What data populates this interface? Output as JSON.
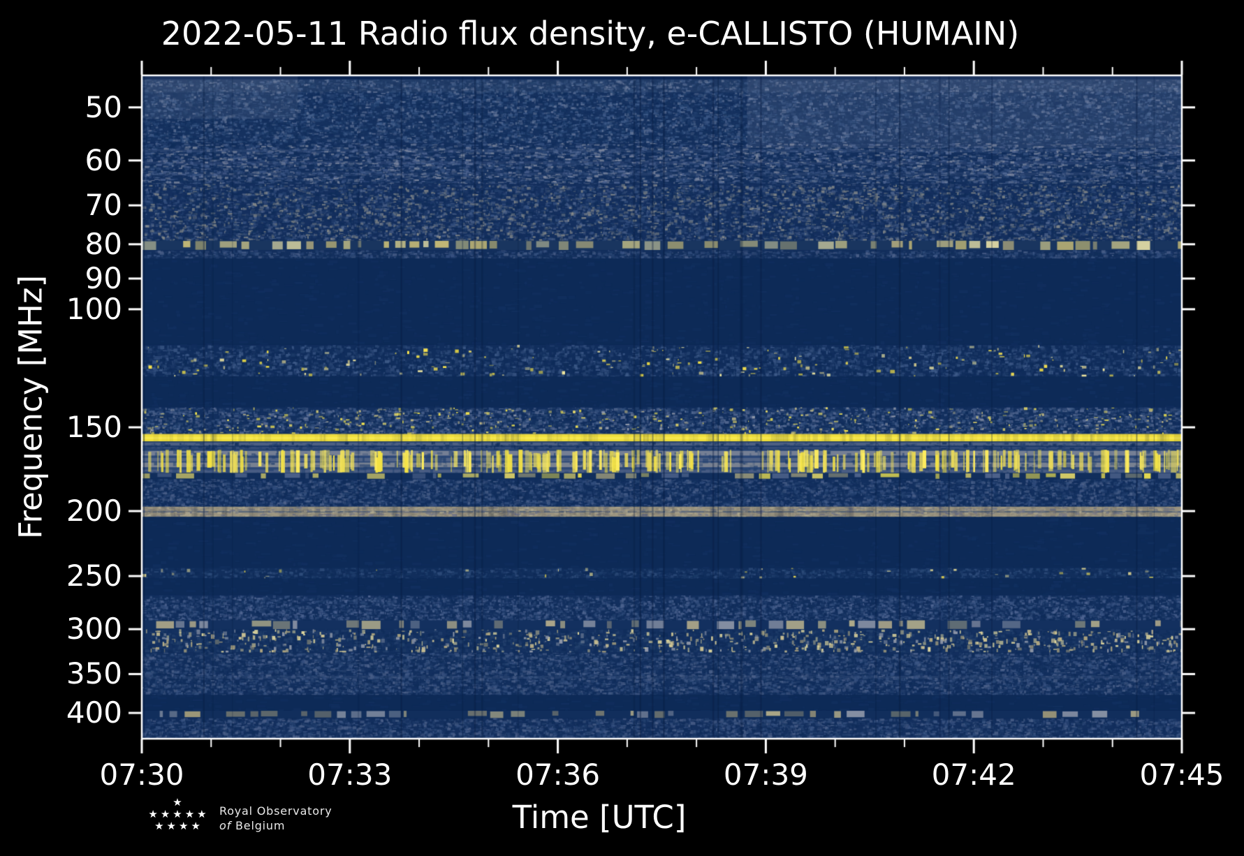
{
  "title": "2022-05-11 Radio flux density, e-CALLISTO (HUMAIN)",
  "chart_data": {
    "type": "heatmap",
    "subtype": "radio-spectrogram",
    "title": "2022-05-11 Radio flux density, e-CALLISTO (HUMAIN)",
    "xlabel": "Time [UTC]",
    "ylabel": "Frequency [MHz]",
    "x_ticks_major": [
      "07:30",
      "07:33",
      "07:36",
      "07:39",
      "07:42",
      "07:45"
    ],
    "x_major_step_min": 3,
    "x_minor_step_min": 1,
    "x_total_minutes": 15,
    "x_range_utc": [
      "07:30",
      "07:45"
    ],
    "y_ticks": [
      50,
      60,
      70,
      80,
      90,
      100,
      150,
      200,
      250,
      300,
      350,
      400
    ],
    "y_scale": "log",
    "y_range_mhz": [
      44.8,
      437
    ],
    "grid": "off",
    "legend": "none",
    "background": "#000000",
    "palette": {
      "quiet_blue": "#0d2a57",
      "noise_blue": "#12305e",
      "light_blue": "#51658d",
      "grey_tan": "#9a937f",
      "pale_yellow": "#d9cf8b",
      "bright_yellow": "#f2e13c",
      "white": "#ffffff"
    },
    "features": [
      {
        "desc": "dark strip at top edge",
        "f0": 44.8,
        "f1": 45.4,
        "base": "#0a2350"
      },
      {
        "desc": "45-56 MHz noisy background",
        "f0": 45.4,
        "f1": 56.5,
        "base": "#15315f",
        "noise": {
          "colors": [
            "#21406e",
            "#2e4d7c",
            "#44608e",
            "#6a7b9d",
            "#16335f",
            "#0f2c5a"
          ],
          "density": 1.2,
          "cw": 4,
          "ch": 2.5
        }
      },
      {
        "desc": "56-65 MHz band with horizontal ripples",
        "f0": 56.5,
        "f1": 65,
        "base": "#132f5d",
        "rows": [
          [
            0.15,
            0.23,
            "#51668f",
            0.32
          ],
          [
            0.45,
            0.53,
            "#51668f",
            0.28
          ],
          [
            0.72,
            0.8,
            "#4c6189",
            0.28
          ]
        ],
        "noise": {
          "colors": [
            "#24416f",
            "#3a5584",
            "#556a96",
            "#8a92a6",
            "#102d59"
          ],
          "density": 1.1,
          "cw": 5,
          "ch": 2
        }
      },
      {
        "desc": "65-79 MHz noisy",
        "f0": 65,
        "f1": 79,
        "base": "#142f5e",
        "noise": {
          "colors": [
            "#24416f",
            "#3a5584",
            "#55698f",
            "#97978f",
            "#102d59",
            "#102d59"
          ],
          "density": 1.15,
          "cw": 4,
          "ch": 2.5
        }
      },
      {
        "desc": "~80 MHz pale emission dashes",
        "f0": 79,
        "f1": 81.6,
        "base": "#19355f",
        "dashes": {
          "colors": [
            "#d9cf8b",
            "#cdc077",
            "#e6dfa6",
            "#b2ab7d"
          ],
          "alphaMin": 0.5
        }
      },
      {
        "desc": "82-84 MHz noisy",
        "f0": 81.6,
        "f1": 84,
        "base": "#132f5d",
        "noise": {
          "colors": [
            "#24416f",
            "#3a5584",
            "#51658d",
            "#102d59"
          ],
          "density": 1.1,
          "cw": 4,
          "ch": 2.5
        }
      },
      {
        "desc": "84-113 MHz quiet band",
        "f0": 84,
        "f1": 113,
        "base": "#0d2a57",
        "noise": {
          "colors": [
            "#123060"
          ],
          "density": 0.15,
          "cw": 8,
          "ch": 3
        }
      },
      {
        "desc": "113-126 MHz airband with bright spots",
        "f0": 113,
        "f1": 126,
        "base": "#102d5c",
        "noise": {
          "colors": [
            "#1d3a68",
            "#2c4977",
            "#44608e",
            "#0e2b58"
          ],
          "density": 1.0,
          "cw": 4,
          "ch": 3
        },
        "dots": {
          "count": 170,
          "colors": [
            "#ffe84f",
            "#f2df45",
            "#efe6a0",
            "#cdc58b"
          ],
          "w": 6,
          "h": 4
        }
      },
      {
        "desc": "126-140 MHz quiet",
        "f0": 126,
        "f1": 140,
        "base": "#0d2a57",
        "noise": {
          "colors": [
            "#123060"
          ],
          "density": 0.2,
          "cw": 8,
          "ch": 3
        }
      },
      {
        "desc": "140-153 MHz noisy with yellow speckles",
        "f0": 140,
        "f1": 153.5,
        "base": "#122f5e",
        "noise": {
          "colors": [
            "#27446f",
            "#3d5987",
            "#64759b",
            "#0f2c59"
          ],
          "density": 1.2,
          "cw": 4,
          "ch": 2.5
        },
        "dots": {
          "count": 430,
          "colors": [
            "#e8da6a",
            "#f5e54e",
            "#bab285",
            "#8f97a8"
          ],
          "w": 5,
          "h": 3
        }
      },
      {
        "desc": "~155 MHz strong continuous RFI line",
        "f0": 153.5,
        "f1": 157.5,
        "base": "#f2e13c",
        "rows": [
          [
            0.0,
            0.18,
            "#d9c94f",
            0.5
          ],
          [
            0.45,
            0.62,
            "#fff171",
            0.6
          ]
        ],
        "mod": true
      },
      {
        "desc": "158-162 MHz gap with grey rows",
        "f0": 157.5,
        "f1": 162,
        "base": "#1a3866",
        "rows": [
          [
            0.1,
            0.5,
            "#76809a",
            0.55
          ],
          [
            0.65,
            0.95,
            "#5a6a90",
            0.4
          ]
        ],
        "noise": {
          "colors": [
            "#24416f",
            "#0f2c59"
          ],
          "density": 0.5,
          "cw": 4,
          "ch": 3
        }
      },
      {
        "desc": "162-175 MHz grey stripes with dense yellow bursts",
        "f0": 162,
        "f1": 175.5,
        "base": "#2c4876",
        "rows": [
          [
            0.05,
            0.25,
            "#8e929f",
            0.75
          ],
          [
            0.35,
            0.5,
            "#747d95",
            0.5
          ],
          [
            0.55,
            0.75,
            "#989a9c",
            0.7
          ],
          [
            0.85,
            1.0,
            "#6b7694",
            0.45
          ]
        ],
        "noise": {
          "colors": [
            "#21406e"
          ],
          "density": 0.25,
          "cw": 5,
          "ch": 4
        },
        "streaks": {
          "count": 250,
          "colors": [
            "#f4e344",
            "#ffee5e",
            "#e8d95a"
          ],
          "wMin": 1.5,
          "wMax": 6.5
        }
      },
      {
        "desc": "~177 MHz speckled line",
        "f0": 175.5,
        "f1": 179,
        "base": "#112e5c",
        "dashes": {
          "colors": [
            "#e3d668",
            "#f2e450",
            "#b0a97f",
            "#51658d"
          ],
          "alphaMin": 0.45
        }
      },
      {
        "desc": "179-197 MHz noisy",
        "f0": 179,
        "f1": 197,
        "base": "#122f5e",
        "noise": {
          "colors": [
            "#24416f",
            "#3a5584",
            "#0f2c59",
            "#51658d"
          ],
          "density": 1.15,
          "cw": 4,
          "ch": 2.5
        }
      },
      {
        "desc": "197-204 MHz tan band",
        "f0": 197,
        "f1": 204,
        "base": "#9a937f",
        "rows": [
          [
            0.42,
            0.58,
            "#26436f",
            0.55
          ]
        ],
        "mod": true,
        "noise": {
          "colors": [
            "#b5ad92",
            "#847f73",
            "#6d7288"
          ],
          "density": 0.8,
          "cw": 5,
          "ch": 2
        }
      },
      {
        "desc": "204-243 MHz quiet",
        "f0": 204,
        "f1": 243,
        "base": "#0d2a57",
        "noise": {
          "colors": [
            "#123060"
          ],
          "density": 0.15,
          "cw": 9,
          "ch": 3
        }
      },
      {
        "desc": "~247 MHz thin noisy band",
        "f0": 243,
        "f1": 252,
        "base": "#112e5c",
        "noise": {
          "colors": [
            "#20406e",
            "#33517f",
            "#0e2b58"
          ],
          "density": 0.9,
          "cw": 4,
          "ch": 2.5
        },
        "dots": {
          "count": 32,
          "colors": [
            "#ffe84f",
            "#d9d08f"
          ],
          "w": 5,
          "h": 4
        }
      },
      {
        "desc": "252-267 MHz quiet",
        "f0": 252,
        "f1": 267,
        "base": "#0d2a57",
        "noise": {
          "colors": [
            "#123060"
          ],
          "density": 0.18,
          "cw": 9,
          "ch": 3
        }
      },
      {
        "desc": "267-291 MHz noisy textured",
        "f0": 267,
        "f1": 291,
        "base": "#122f5e",
        "noise": {
          "colors": [
            "#24416f",
            "#3a5584",
            "#556a96",
            "#0f2c59"
          ],
          "density": 1.2,
          "cw": 3.5,
          "ch": 2.5
        }
      },
      {
        "desc": "~295 MHz tan speckle row",
        "f0": 291,
        "f1": 300,
        "base": "#13305f",
        "dashes": {
          "colors": [
            "#b7ae8c",
            "#cfc493",
            "#8f97a8"
          ],
          "alphaMin": 0.4
        }
      },
      {
        "desc": "300-325 MHz tan dash band",
        "f0": 300,
        "f1": 325,
        "base": "#143160",
        "noise": {
          "colors": [
            "#27446f",
            "#0f2c59"
          ],
          "density": 0.8,
          "cw": 4,
          "ch": 3
        },
        "dots": {
          "count": 720,
          "colors": [
            "#c9bf92",
            "#b0a67f",
            "#e0d79e",
            "#8f97a8"
          ],
          "w": 5,
          "h": 6
        }
      },
      {
        "desc": "325-376 MHz noisy",
        "f0": 325,
        "f1": 376,
        "base": "#122f5e",
        "rows": [
          [
            0.55,
            0.62,
            "#4a5f88",
            0.3
          ]
        ],
        "noise": {
          "colors": [
            "#23406e",
            "#395483",
            "#51658d",
            "#0f2c59"
          ],
          "density": 1.15,
          "cw": 4,
          "ch": 2.5
        }
      },
      {
        "desc": "376-397 MHz quiet",
        "f0": 376,
        "f1": 397,
        "base": "#0d2a57",
        "noise": {
          "colors": [
            "#123060"
          ],
          "density": 0.2,
          "cw": 9,
          "ch": 3
        }
      },
      {
        "desc": "~402 MHz tan speckle line",
        "f0": 397,
        "f1": 407,
        "base": "#112e5c",
        "dashes": {
          "colors": [
            "#c2b88d",
            "#a9a07b",
            "#8f97a8"
          ],
          "alphaMin": 0.4
        }
      },
      {
        "desc": "407-437 MHz bottom noisy band",
        "f0": 407,
        "f1": 437,
        "base": "#132f5e",
        "noise": {
          "colors": [
            "#24416f",
            "#3a5584",
            "#51658d",
            "#0f2c59"
          ],
          "density": 1.25,
          "cw": 4,
          "ch": 2.5
        }
      }
    ],
    "shading": [
      {
        "desc": "lighter patch top-left",
        "x0": 0.0,
        "x1": 0.15,
        "f0": 44.8,
        "f1": 52,
        "color": "#7d8aa6",
        "alpha": 0.15
      },
      {
        "desc": "lighter patch top-right",
        "x0": 0.582,
        "x1": 1.0,
        "f0": 44.8,
        "f1": 57.5,
        "color": "#7d8aa6",
        "alpha": 0.16
      },
      {
        "desc": "bright top rows",
        "x0": 0.0,
        "x1": 1.0,
        "f0": 45.4,
        "f1": 47.5,
        "color": "#8893a9",
        "alpha": 0.1
      }
    ],
    "dropouts": {
      "count": 26,
      "color": "#071c40",
      "desc": "thin vertical data gaps"
    }
  },
  "logo": {
    "line1": "Royal Observatory",
    "line2_italic": "of",
    "line2_rest": "Belgium",
    "stars_rows": [
      1,
      5,
      4
    ]
  }
}
